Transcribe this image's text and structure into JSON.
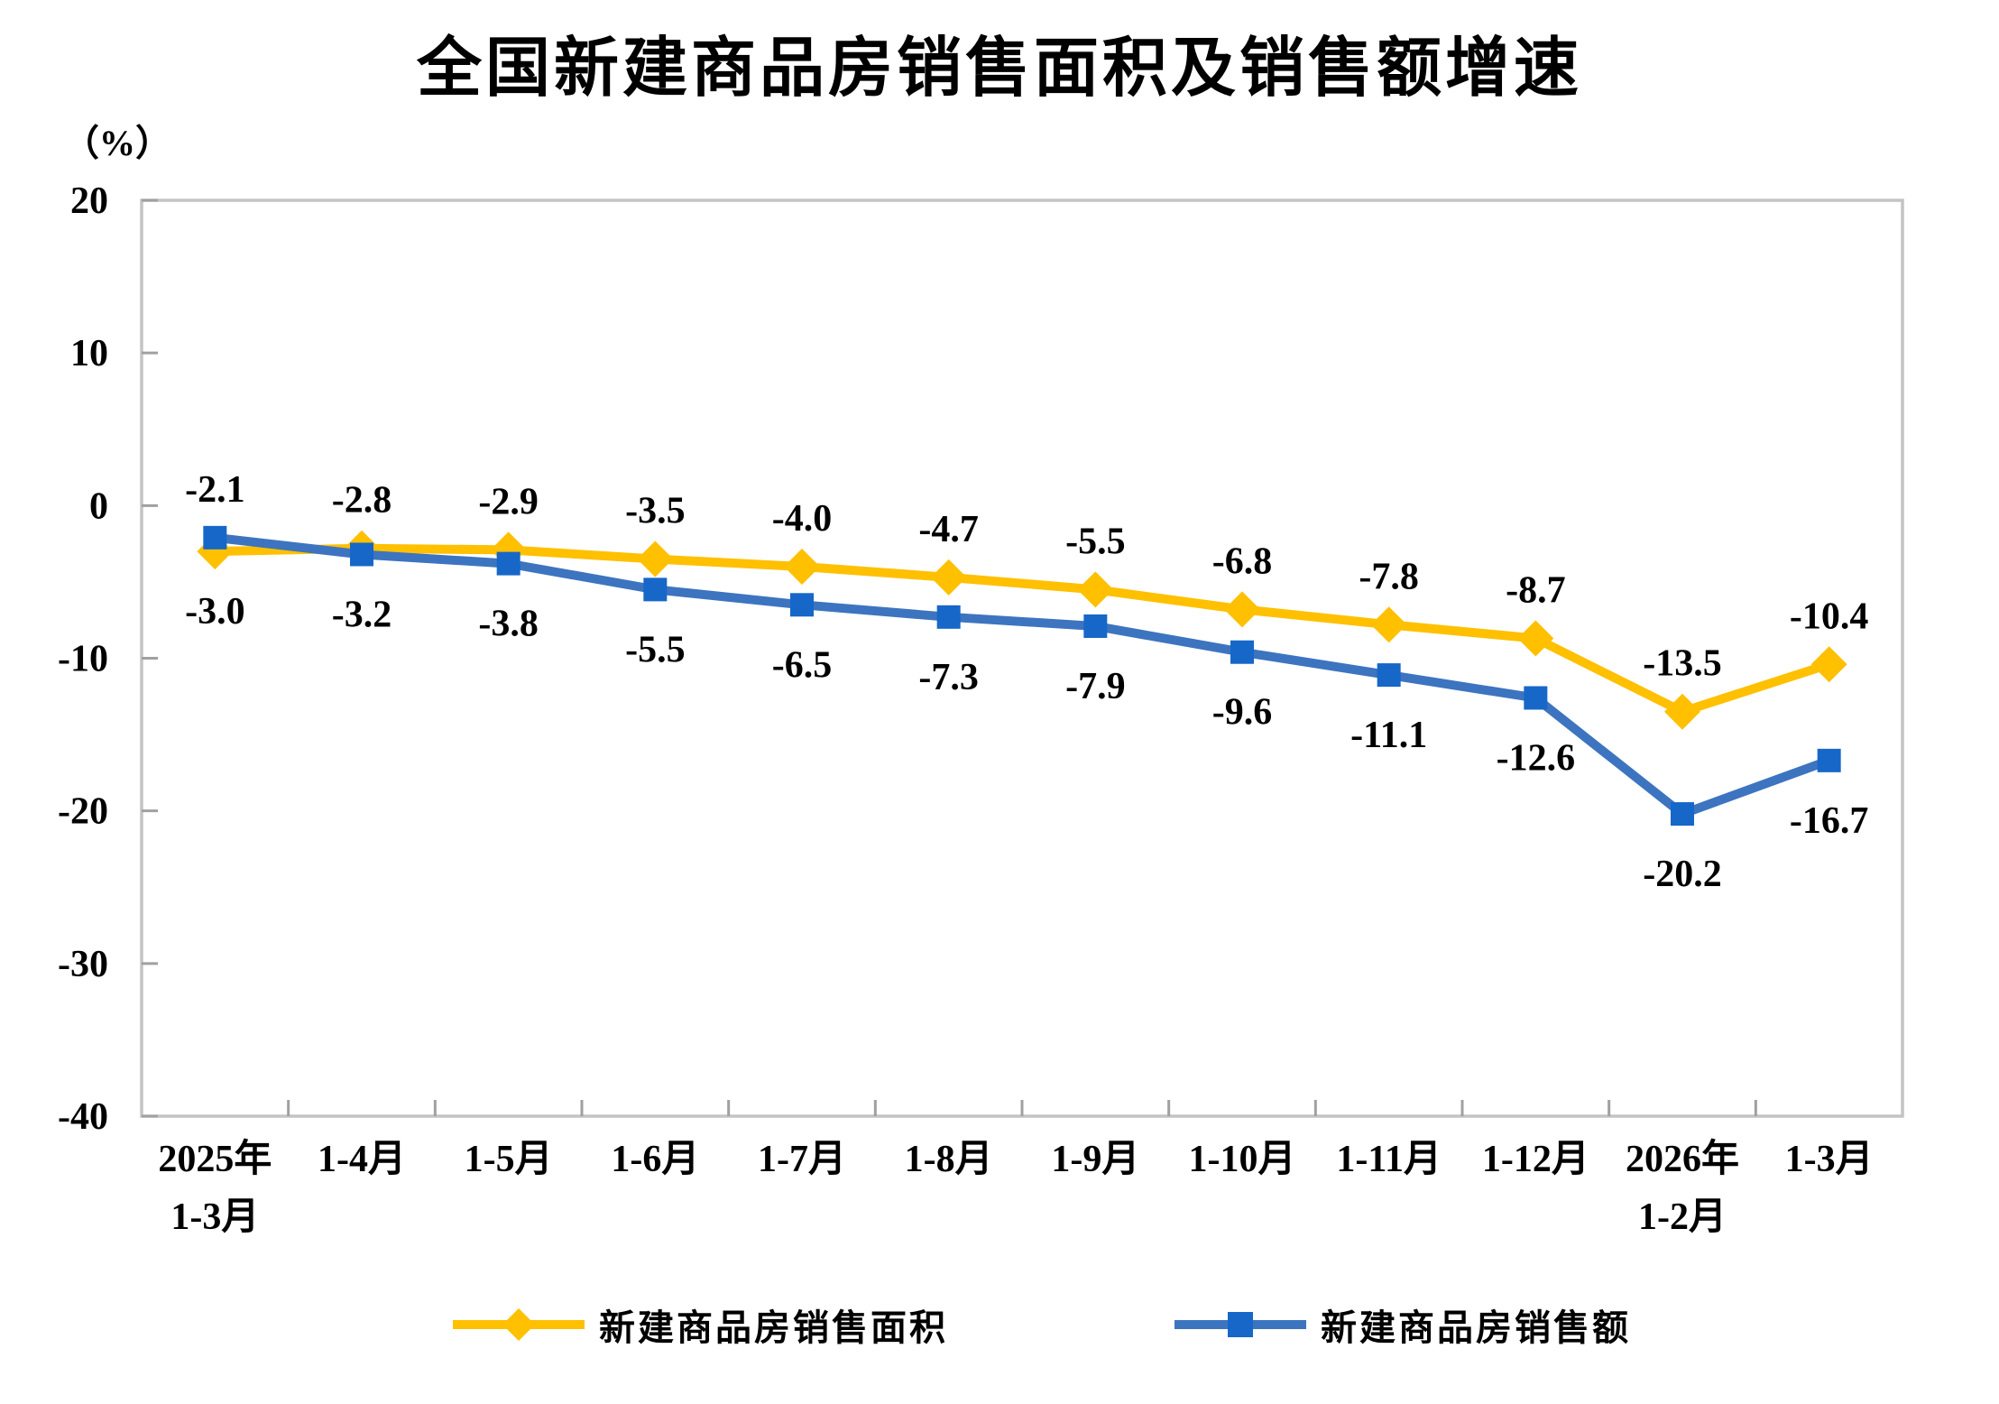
{
  "chart_data": {
    "type": "line",
    "title": "全国新建商品房销售面积及销售额增速",
    "ylabel": "（%）",
    "xlabel": "",
    "ylim": [
      -40,
      20
    ],
    "yticks": [
      20,
      10,
      0,
      -10,
      -20,
      -30,
      -40
    ],
    "grid": false,
    "legend_position": "bottom",
    "label_decimals": 1,
    "categories": [
      [
        "2025年",
        "1-3月"
      ],
      [
        "1-4月"
      ],
      [
        "1-5月"
      ],
      [
        "1-6月"
      ],
      [
        "1-7月"
      ],
      [
        "1-8月"
      ],
      [
        "1-9月"
      ],
      [
        "1-10月"
      ],
      [
        "1-11月"
      ],
      [
        "1-12月"
      ],
      [
        "2026年",
        "1-2月"
      ],
      [
        "1-3月"
      ]
    ],
    "series": [
      {
        "name": "新建商品房销售面积",
        "marker": "diamond",
        "line_color": "#FFC000",
        "marker_color": "#FFC000",
        "values": [
          -3.0,
          -2.8,
          -2.9,
          -3.5,
          -4.0,
          -4.7,
          -5.5,
          -6.8,
          -7.8,
          -8.7,
          -13.5,
          -10.4
        ],
        "label_side": "above",
        "label_side_first": "below"
      },
      {
        "name": "新建商品房销售额",
        "marker": "square",
        "line_color": "#3D74C0",
        "marker_color": "#1667C8",
        "values": [
          -2.1,
          -3.2,
          -3.8,
          -5.5,
          -6.5,
          -7.3,
          -7.9,
          -9.6,
          -11.1,
          -12.6,
          -20.2,
          -16.7
        ],
        "label_side": "below",
        "label_side_first": "above"
      }
    ]
  },
  "style_colors": {
    "background": "#FFFFFF",
    "plot_border": "#C4C4C4",
    "tick": "#A0A0A0",
    "text": "#000000"
  }
}
